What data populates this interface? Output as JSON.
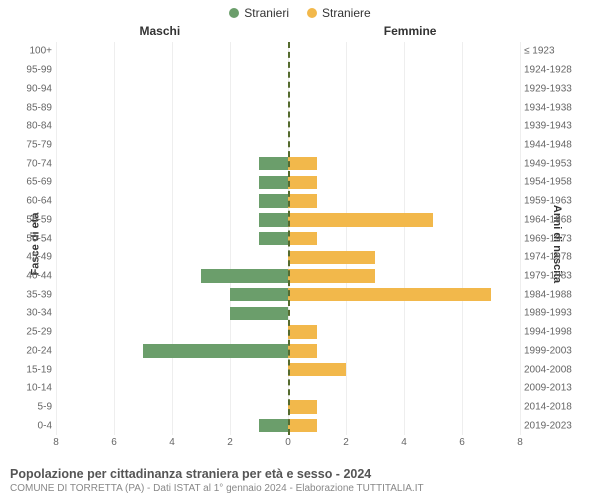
{
  "legend": {
    "male": {
      "label": "Stranieri",
      "color": "#6b9e6b"
    },
    "female": {
      "label": "Straniere",
      "color": "#f2b84b"
    }
  },
  "headers": {
    "left": "Maschi",
    "right": "Femmine"
  },
  "axis": {
    "left_label": "Fasce di età",
    "right_label": "Anni di nascita",
    "x_max": 8,
    "x_ticks": [
      8,
      6,
      4,
      2,
      0,
      2,
      4,
      6,
      8
    ],
    "grid_color": "#eeeeee",
    "centerline_color": "#556B2F"
  },
  "rows": [
    {
      "age": "100+",
      "birth": "≤ 1923",
      "m": 0,
      "f": 0
    },
    {
      "age": "95-99",
      "birth": "1924-1928",
      "m": 0,
      "f": 0
    },
    {
      "age": "90-94",
      "birth": "1929-1933",
      "m": 0,
      "f": 0
    },
    {
      "age": "85-89",
      "birth": "1934-1938",
      "m": 0,
      "f": 0
    },
    {
      "age": "80-84",
      "birth": "1939-1943",
      "m": 0,
      "f": 0
    },
    {
      "age": "75-79",
      "birth": "1944-1948",
      "m": 0,
      "f": 0
    },
    {
      "age": "70-74",
      "birth": "1949-1953",
      "m": 1,
      "f": 1
    },
    {
      "age": "65-69",
      "birth": "1954-1958",
      "m": 1,
      "f": 1
    },
    {
      "age": "60-64",
      "birth": "1959-1963",
      "m": 1,
      "f": 1
    },
    {
      "age": "55-59",
      "birth": "1964-1968",
      "m": 1,
      "f": 5
    },
    {
      "age": "50-54",
      "birth": "1969-1973",
      "m": 1,
      "f": 1
    },
    {
      "age": "45-49",
      "birth": "1974-1978",
      "m": 0,
      "f": 3
    },
    {
      "age": "40-44",
      "birth": "1979-1983",
      "m": 3,
      "f": 3
    },
    {
      "age": "35-39",
      "birth": "1984-1988",
      "m": 2,
      "f": 7
    },
    {
      "age": "30-34",
      "birth": "1989-1993",
      "m": 2,
      "f": 0
    },
    {
      "age": "25-29",
      "birth": "1994-1998",
      "m": 0,
      "f": 1
    },
    {
      "age": "20-24",
      "birth": "1999-2003",
      "m": 5,
      "f": 1
    },
    {
      "age": "15-19",
      "birth": "2004-2008",
      "m": 0,
      "f": 2
    },
    {
      "age": "10-14",
      "birth": "2009-2013",
      "m": 0,
      "f": 0
    },
    {
      "age": "5-9",
      "birth": "2014-2018",
      "m": 0,
      "f": 1
    },
    {
      "age": "0-4",
      "birth": "2019-2023",
      "m": 1,
      "f": 1
    }
  ],
  "footer": {
    "title": "Popolazione per cittadinanza straniera per età e sesso - 2024",
    "subtitle": "COMUNE DI TORRETTA (PA) - Dati ISTAT al 1° gennaio 2024 - Elaborazione TUTTITALIA.IT"
  },
  "style": {
    "font_family": "Arial",
    "title_fontsize": 12.5,
    "subtitle_fontsize": 10,
    "tick_fontsize": 10,
    "background": "#ffffff"
  }
}
